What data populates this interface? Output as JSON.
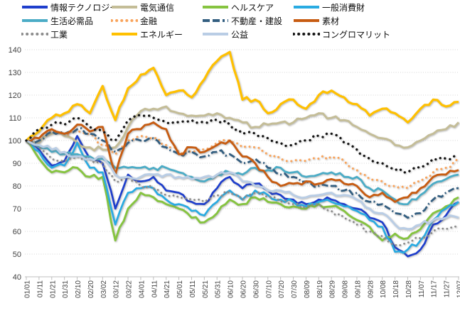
{
  "page": {
    "background": "#FFFFFF"
  },
  "axes": {
    "y_unit_labels": [
      "40",
      "50",
      "60",
      "70",
      "80",
      "90",
      "100",
      "110",
      "120",
      "130",
      "140"
    ]
  },
  "chart_data": {
    "type": "line",
    "title": "",
    "xlabel": "",
    "ylabel": "",
    "legend_position": "top",
    "grid": "horizontal-dotted",
    "ylim": [
      40,
      140
    ],
    "y_ticks": [
      40,
      50,
      60,
      70,
      80,
      90,
      100,
      110,
      120,
      130,
      140
    ],
    "categories": [
      "01/01",
      "01/11",
      "01/21",
      "01/31",
      "02/10",
      "02/20",
      "03/02",
      "03/12",
      "03/22",
      "04/01",
      "04/11",
      "04/21",
      "05/01",
      "05/11",
      "05/21",
      "05/31",
      "06/10",
      "06/20",
      "06/30",
      "07/10",
      "07/20",
      "07/30",
      "08/09",
      "08/19",
      "08/29",
      "09/08",
      "09/18",
      "09/28",
      "10/08",
      "10/18",
      "10/28",
      "11/07",
      "11/17",
      "11/27",
      "12/07"
    ],
    "series": [
      {
        "key": "information-technology",
        "name": "情報テクノロジー",
        "color": "#1E3ECC",
        "line_style": "solid",
        "width": 2.7,
        "values": [
          100,
          96,
          89,
          91,
          102,
          92,
          90,
          70,
          85,
          82,
          84,
          78,
          77,
          73,
          72,
          79,
          84,
          79,
          81,
          78,
          76,
          74,
          72,
          74,
          74,
          72,
          70,
          66,
          64,
          53,
          49,
          52,
          63,
          67,
          73
        ]
      },
      {
        "key": "telecom",
        "name": "電気通信",
        "color": "#C4BD97",
        "line_style": "solid",
        "width": 2.9,
        "values": [
          100,
          99,
          103,
          102,
          99,
          97,
          96,
          97,
          106,
          113,
          114,
          115,
          112,
          111,
          111,
          112,
          110,
          108,
          106,
          107,
          108,
          108,
          110,
          112,
          110,
          109,
          106,
          103,
          101,
          98,
          97,
          100,
          103,
          105,
          108
        ]
      },
      {
        "key": "healthcare",
        "name": "ヘルスケア",
        "color": "#86C440",
        "line_style": "solid",
        "width": 2.9,
        "values": [
          100,
          92,
          86,
          86,
          88,
          84,
          84,
          56,
          70,
          77,
          75,
          72,
          70,
          66,
          64,
          68,
          74,
          72,
          75,
          73,
          72,
          71,
          70,
          72,
          71,
          69,
          65,
          62,
          56,
          59,
          57,
          61,
          68,
          71,
          75
        ]
      },
      {
        "key": "consumer-discretionary",
        "name": "一般消費財",
        "color": "#29ABE2",
        "line_style": "solid",
        "width": 2.7,
        "values": [
          100,
          95,
          88,
          89,
          99,
          88,
          86,
          63,
          77,
          79,
          79,
          74,
          72,
          69,
          67,
          73,
          78,
          74,
          78,
          76,
          74,
          73,
          71,
          73,
          73,
          71,
          69,
          65,
          62,
          51,
          52,
          56,
          65,
          70,
          73
        ]
      },
      {
        "key": "consumer-staples",
        "name": "生活必需品",
        "color": "#4BACC6",
        "line_style": "solid",
        "width": 2.8,
        "values": [
          100,
          97,
          95,
          94,
          94,
          93,
          92,
          88,
          88,
          88,
          88,
          88,
          86,
          84,
          82,
          85,
          86,
          85,
          88,
          87,
          88,
          86,
          84,
          85,
          86,
          84,
          84,
          79,
          78,
          74,
          72,
          76,
          81,
          83,
          85
        ]
      },
      {
        "key": "financials",
        "name": "金融",
        "color": "#F9A45C",
        "line_style": "dot",
        "width": 3.0,
        "values": [
          100,
          101,
          104,
          103,
          104,
          103,
          98,
          94,
          100,
          102,
          101,
          98,
          95,
          95,
          96,
          99,
          100,
          97,
          97,
          94,
          92,
          91,
          91,
          92,
          93,
          91,
          87,
          83,
          82,
          80,
          79,
          82,
          86,
          88,
          92
        ]
      },
      {
        "key": "real-estate-construction",
        "name": "不動産・建設",
        "color": "#335E80",
        "line_style": "dash_dot",
        "width": 2.8,
        "values": [
          100,
          100,
          104,
          103,
          105,
          103,
          100,
          95,
          99,
          100,
          101,
          97,
          94,
          95,
          93,
          95,
          94,
          90,
          92,
          88,
          85,
          84,
          82,
          80,
          80,
          78,
          77,
          73,
          72,
          68,
          66,
          68,
          74,
          77,
          79
        ]
      },
      {
        "key": "materials",
        "name": "素材",
        "color": "#C75C12",
        "line_style": "solid",
        "width": 2.9,
        "values": [
          100,
          101,
          105,
          103,
          107,
          104,
          106,
          85,
          103,
          105,
          108,
          105,
          94,
          97,
          95,
          98,
          100,
          93,
          90,
          84,
          80,
          81,
          82,
          81,
          83,
          81,
          80,
          75,
          77,
          73,
          75,
          79,
          84,
          85,
          87
        ]
      },
      {
        "key": "industrials",
        "name": "工業",
        "color": "#8C8C8C",
        "line_style": "dot",
        "width": 2.8,
        "values": [
          100,
          97,
          92,
          91,
          93,
          92,
          90,
          82,
          84,
          80,
          79,
          76,
          75,
          74,
          73,
          76,
          77,
          74,
          77,
          75,
          73,
          72,
          71,
          72,
          69,
          66,
          63,
          60,
          58,
          54,
          55,
          57,
          60,
          61,
          62
        ]
      },
      {
        "key": "energy",
        "name": "エネルギー",
        "color": "#FFC000",
        "line_style": "solid",
        "width": 3.2,
        "values": [
          100,
          104,
          110,
          112,
          116,
          112,
          124,
          109,
          123,
          129,
          132,
          120,
          122,
          119,
          127,
          135,
          139,
          118,
          118,
          112,
          116,
          118,
          114,
          120,
          122,
          119,
          116,
          111,
          114,
          112,
          108,
          114,
          118,
          115,
          117
        ]
      },
      {
        "key": "utilities",
        "name": "公益",
        "color": "#B9CDE5",
        "line_style": "solid",
        "width": 2.9,
        "values": [
          100,
          98,
          96,
          95,
          93,
          92,
          93,
          85,
          84,
          84,
          85,
          85,
          84,
          83,
          84,
          85,
          86,
          82,
          80,
          78,
          78,
          76,
          75,
          76,
          77,
          76,
          74,
          70,
          68,
          63,
          61,
          63,
          65,
          66,
          66
        ]
      },
      {
        "key": "conglomerates",
        "name": "コングロマリット",
        "color": "#141414",
        "line_style": "dot",
        "width": 3.3,
        "values": [
          100,
          105,
          107,
          107,
          110,
          106,
          104,
          100,
          109,
          111,
          110,
          108,
          108,
          109,
          108,
          109,
          107,
          103,
          103,
          101,
          99,
          98,
          100,
          102,
          103,
          99,
          96,
          92,
          90,
          87,
          86,
          88,
          92,
          92,
          93
        ]
      }
    ]
  }
}
